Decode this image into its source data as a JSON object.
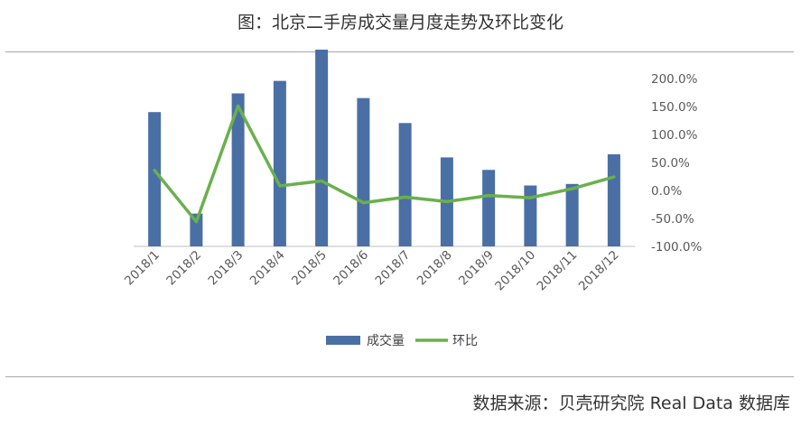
{
  "title": "图：北京二手房成交量月度走势及环比变化",
  "source": "数据来源：贝壳研究院 Real Data 数据库",
  "colors": {
    "bar": "#4a6fa5",
    "line": "#6ab04c",
    "axis": "#bfbfbf"
  },
  "chart_data": {
    "type": "bar+line",
    "categories": [
      "2018/1",
      "2018/2",
      "2018/3",
      "2018/4",
      "2018/5",
      "2018/6",
      "2018/7",
      "2018/8",
      "2018/9",
      "2018/10",
      "2018/11",
      "2018/12"
    ],
    "series": [
      {
        "name": "成交量",
        "type": "bar",
        "values": [
          0.86,
          0.21,
          0.98,
          1.06,
          1.26,
          0.95,
          0.79,
          0.57,
          0.49,
          0.39,
          0.4,
          0.59
        ]
      },
      {
        "name": "环比",
        "type": "line",
        "axis": "right",
        "values": [
          36.0,
          -56.0,
          151.0,
          8.0,
          17.0,
          -22.0,
          -12.0,
          -20.0,
          -9.0,
          -13.0,
          3.0,
          24.0
        ]
      }
    ],
    "y2_ticks": [
      "200.0%",
      "150.0%",
      "100.0%",
      "50.0%",
      "0.0%",
      "-50.0%",
      "-100.0%"
    ],
    "y2lim": [
      -100,
      200
    ],
    "left_axis_labels": false,
    "legend": "bottom",
    "grid": false
  }
}
